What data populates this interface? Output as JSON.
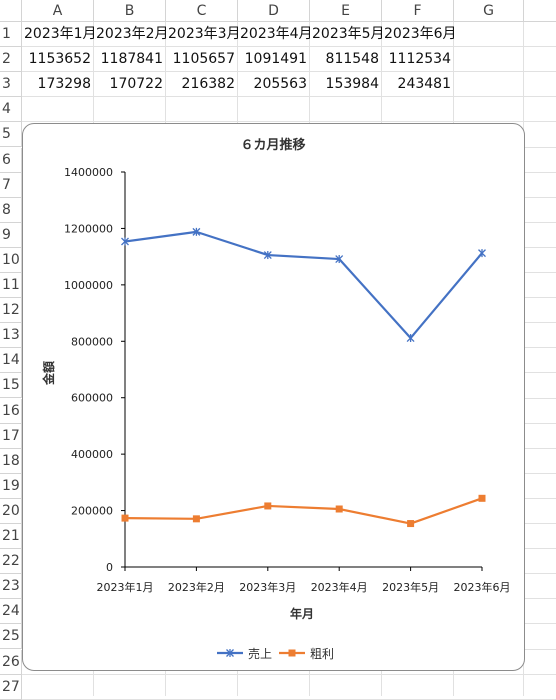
{
  "sheet": {
    "columns": [
      "A",
      "B",
      "C",
      "D",
      "E",
      "F",
      "G"
    ],
    "rows": [
      "1",
      "2",
      "3",
      "4",
      "5",
      "6",
      "7",
      "8",
      "9",
      "10",
      "11",
      "12",
      "13",
      "14",
      "15",
      "16",
      "17",
      "18",
      "19",
      "20",
      "21",
      "22",
      "23",
      "24",
      "25",
      "26",
      "27"
    ],
    "cells": {
      "row1": [
        "2023年1月",
        "2023年2月",
        "2023年3月",
        "2023年4月",
        "2023年5月",
        "2023年6月"
      ],
      "row2": [
        "1153652",
        "1187841",
        "1105657",
        "1091491",
        "811548",
        "1112534"
      ],
      "row3": [
        "173298",
        "170722",
        "216382",
        "205563",
        "153984",
        "243481"
      ]
    }
  },
  "chart_data": {
    "type": "line",
    "title": "６カ月推移",
    "xlabel": "年月",
    "ylabel": "金額",
    "categories": [
      "2023年1月",
      "2023年2月",
      "2023年3月",
      "2023年4月",
      "2023年5月",
      "2023年6月"
    ],
    "ylim": [
      0,
      1400000
    ],
    "yticks": [
      "0",
      "200000",
      "400000",
      "600000",
      "800000",
      "1000000",
      "1200000",
      "1400000"
    ],
    "legend_position": "bottom",
    "grid": false,
    "series": [
      {
        "name": "売上",
        "color": "#4472c4",
        "marker": "asterisk",
        "values": [
          1153652,
          1187841,
          1105657,
          1091491,
          811548,
          1112534
        ]
      },
      {
        "name": "粗利",
        "color": "#ed7d31",
        "marker": "square",
        "values": [
          173298,
          170722,
          216382,
          205563,
          153984,
          243481
        ]
      }
    ]
  }
}
